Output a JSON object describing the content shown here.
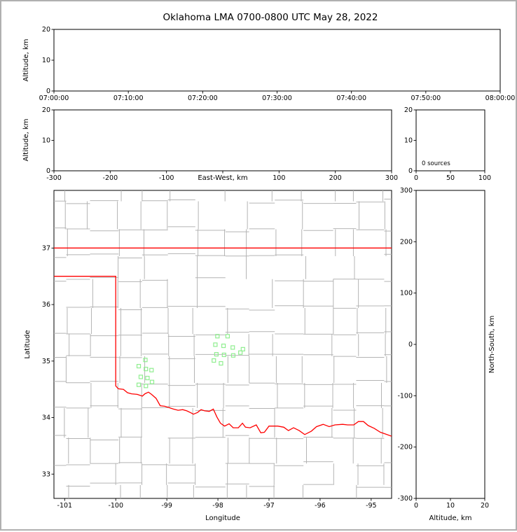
{
  "title": "Oklahoma LMA 0700-0800 UTC May 28, 2022",
  "colors": {
    "state_border": "#ff0000",
    "county_lines": "#b4b4b4",
    "station_marker": "#90ee90",
    "axis": "#000000",
    "background": "#ffffff",
    "page_border": "#b0b0b0"
  },
  "chart_data": [
    {
      "id": "time-height",
      "type": "scatter",
      "description": "Source altitude vs time panel (no sources plotted)",
      "xlabel": "",
      "ylabel": "Altitude, km",
      "xlim": [
        0,
        60
      ],
      "x_tick_values": [
        0,
        10,
        20,
        30,
        40,
        50,
        60
      ],
      "x_tick_labels": [
        "07:00:00",
        "07:10:00",
        "07:20:00",
        "07:30:00",
        "07:40:00",
        "07:50:00",
        "08:00:00"
      ],
      "ylim": [
        0,
        20
      ],
      "y_tick_values": [
        0,
        10,
        20
      ],
      "y_tick_labels": [
        "0",
        "10",
        "20"
      ],
      "points": []
    },
    {
      "id": "ew-height",
      "type": "scatter",
      "description": "Altitude vs East-West distance panel (no sources plotted)",
      "xlabel": "East-West, km",
      "ylabel": "Altitude, km",
      "xlim": [
        -300,
        300
      ],
      "x_tick_values": [
        -300,
        -200,
        -100,
        0,
        100,
        200,
        300
      ],
      "x_tick_labels": [
        "-300",
        "-200",
        "-100",
        "",
        "100",
        "200",
        "300"
      ],
      "ylim": [
        0,
        20
      ],
      "y_tick_values": [
        0,
        10,
        20
      ],
      "y_tick_labels": [
        "0",
        "10",
        "20"
      ],
      "points": []
    },
    {
      "id": "altitude-histogram",
      "type": "line",
      "description": "Source count vs altitude histogram panel (empty)",
      "xlabel": "",
      "ylabel": "",
      "annotation": "0 sources",
      "xlim": [
        0,
        100
      ],
      "x_tick_values": [
        0,
        50,
        100
      ],
      "x_tick_labels": [
        "0",
        "50",
        "100"
      ],
      "ylim": [
        0,
        20
      ],
      "y_tick_values": [
        0,
        10,
        20
      ],
      "y_tick_labels": [
        "0",
        "10",
        "20"
      ],
      "points": []
    },
    {
      "id": "plan-view-map",
      "type": "scatter",
      "description": "Plan view: gray county lines, red Oklahoma state border, green LMA station squares",
      "xlabel": "Longitude",
      "ylabel": "Latitude",
      "xlim": [
        -101.21,
        -94.6
      ],
      "x_tick_values": [
        -101,
        -100,
        -99,
        -98,
        -97,
        -96,
        -95
      ],
      "x_tick_labels": [
        "-101",
        "-100",
        "-99",
        "-98",
        "-97",
        "-96",
        "-95"
      ],
      "ylim": [
        32.57,
        38.02
      ],
      "y_tick_values": [
        33,
        34,
        35,
        36,
        37
      ],
      "y_tick_labels": [
        "33",
        "34",
        "35",
        "36",
        "37"
      ],
      "state_border": [
        [
          [
            -101.21,
            37.0
          ],
          [
            -94.6,
            37.0
          ]
        ],
        [
          [
            -101.21,
            36.5
          ],
          [
            -100.0,
            36.5
          ],
          [
            -100.0,
            34.56
          ],
          [
            -99.95,
            34.51
          ],
          [
            -99.85,
            34.5
          ],
          [
            -99.77,
            34.44
          ],
          [
            -99.69,
            34.42
          ],
          [
            -99.58,
            34.41
          ],
          [
            -99.48,
            34.38
          ],
          [
            -99.43,
            34.42
          ],
          [
            -99.36,
            34.45
          ],
          [
            -99.3,
            34.41
          ],
          [
            -99.21,
            34.34
          ],
          [
            -99.13,
            34.21
          ],
          [
            -99.04,
            34.2
          ],
          [
            -98.97,
            34.18
          ],
          [
            -98.87,
            34.15
          ],
          [
            -98.78,
            34.13
          ],
          [
            -98.69,
            34.14
          ],
          [
            -98.61,
            34.12
          ],
          [
            -98.54,
            34.09
          ],
          [
            -98.48,
            34.06
          ],
          [
            -98.4,
            34.09
          ],
          [
            -98.33,
            34.14
          ],
          [
            -98.26,
            34.12
          ],
          [
            -98.17,
            34.11
          ],
          [
            -98.09,
            34.15
          ],
          [
            -98.02,
            34.01
          ],
          [
            -97.95,
            33.9
          ],
          [
            -97.87,
            33.85
          ],
          [
            -97.78,
            33.89
          ],
          [
            -97.7,
            33.82
          ],
          [
            -97.6,
            33.82
          ],
          [
            -97.52,
            33.9
          ],
          [
            -97.46,
            33.83
          ],
          [
            -97.37,
            33.82
          ],
          [
            -97.25,
            33.87
          ],
          [
            -97.16,
            33.73
          ],
          [
            -97.09,
            33.74
          ],
          [
            -97.0,
            33.85
          ],
          [
            -96.91,
            33.85
          ],
          [
            -96.83,
            33.85
          ],
          [
            -96.71,
            33.83
          ],
          [
            -96.62,
            33.77
          ],
          [
            -96.52,
            33.82
          ],
          [
            -96.41,
            33.77
          ],
          [
            -96.3,
            33.7
          ],
          [
            -96.17,
            33.76
          ],
          [
            -96.07,
            33.84
          ],
          [
            -95.94,
            33.88
          ],
          [
            -95.82,
            33.84
          ],
          [
            -95.71,
            33.87
          ],
          [
            -95.56,
            33.88
          ],
          [
            -95.46,
            33.87
          ],
          [
            -95.34,
            33.87
          ],
          [
            -95.25,
            33.93
          ],
          [
            -95.15,
            33.93
          ],
          [
            -95.06,
            33.86
          ],
          [
            -94.94,
            33.81
          ],
          [
            -94.82,
            33.74
          ],
          [
            -94.72,
            33.71
          ],
          [
            -94.6,
            33.67
          ]
        ]
      ],
      "stations": [
        [
          -98.01,
          35.44
        ],
        [
          -97.81,
          35.44
        ],
        [
          -98.05,
          35.29
        ],
        [
          -97.89,
          35.27
        ],
        [
          -97.71,
          35.24
        ],
        [
          -98.03,
          35.12
        ],
        [
          -97.88,
          35.11
        ],
        [
          -97.7,
          35.1
        ],
        [
          -97.56,
          35.15
        ],
        [
          -97.51,
          35.21
        ],
        [
          -98.08,
          35.01
        ],
        [
          -97.94,
          34.96
        ],
        [
          -99.42,
          35.02
        ],
        [
          -99.55,
          34.91
        ],
        [
          -99.41,
          34.86
        ],
        [
          -99.3,
          34.84
        ],
        [
          -99.51,
          34.72
        ],
        [
          -99.38,
          34.7
        ],
        [
          -99.29,
          34.63
        ],
        [
          -99.55,
          34.58
        ],
        [
          -99.41,
          34.56
        ]
      ]
    },
    {
      "id": "ns-height",
      "type": "scatter",
      "description": "North-South distance vs altitude panel (no sources plotted)",
      "xlabel": "Altitude, km",
      "ylabel": "North-South, km",
      "xlim": [
        0,
        20
      ],
      "x_tick_values": [
        0,
        10,
        20
      ],
      "x_tick_labels": [
        "0",
        "10",
        "20"
      ],
      "ylim": [
        -300,
        300
      ],
      "y_tick_values": [
        -300,
        -200,
        -100,
        0,
        100,
        200,
        300
      ],
      "y_tick_labels": [
        "-300",
        "-200",
        "-100",
        "0",
        "100",
        "200",
        "300"
      ],
      "points": []
    }
  ]
}
